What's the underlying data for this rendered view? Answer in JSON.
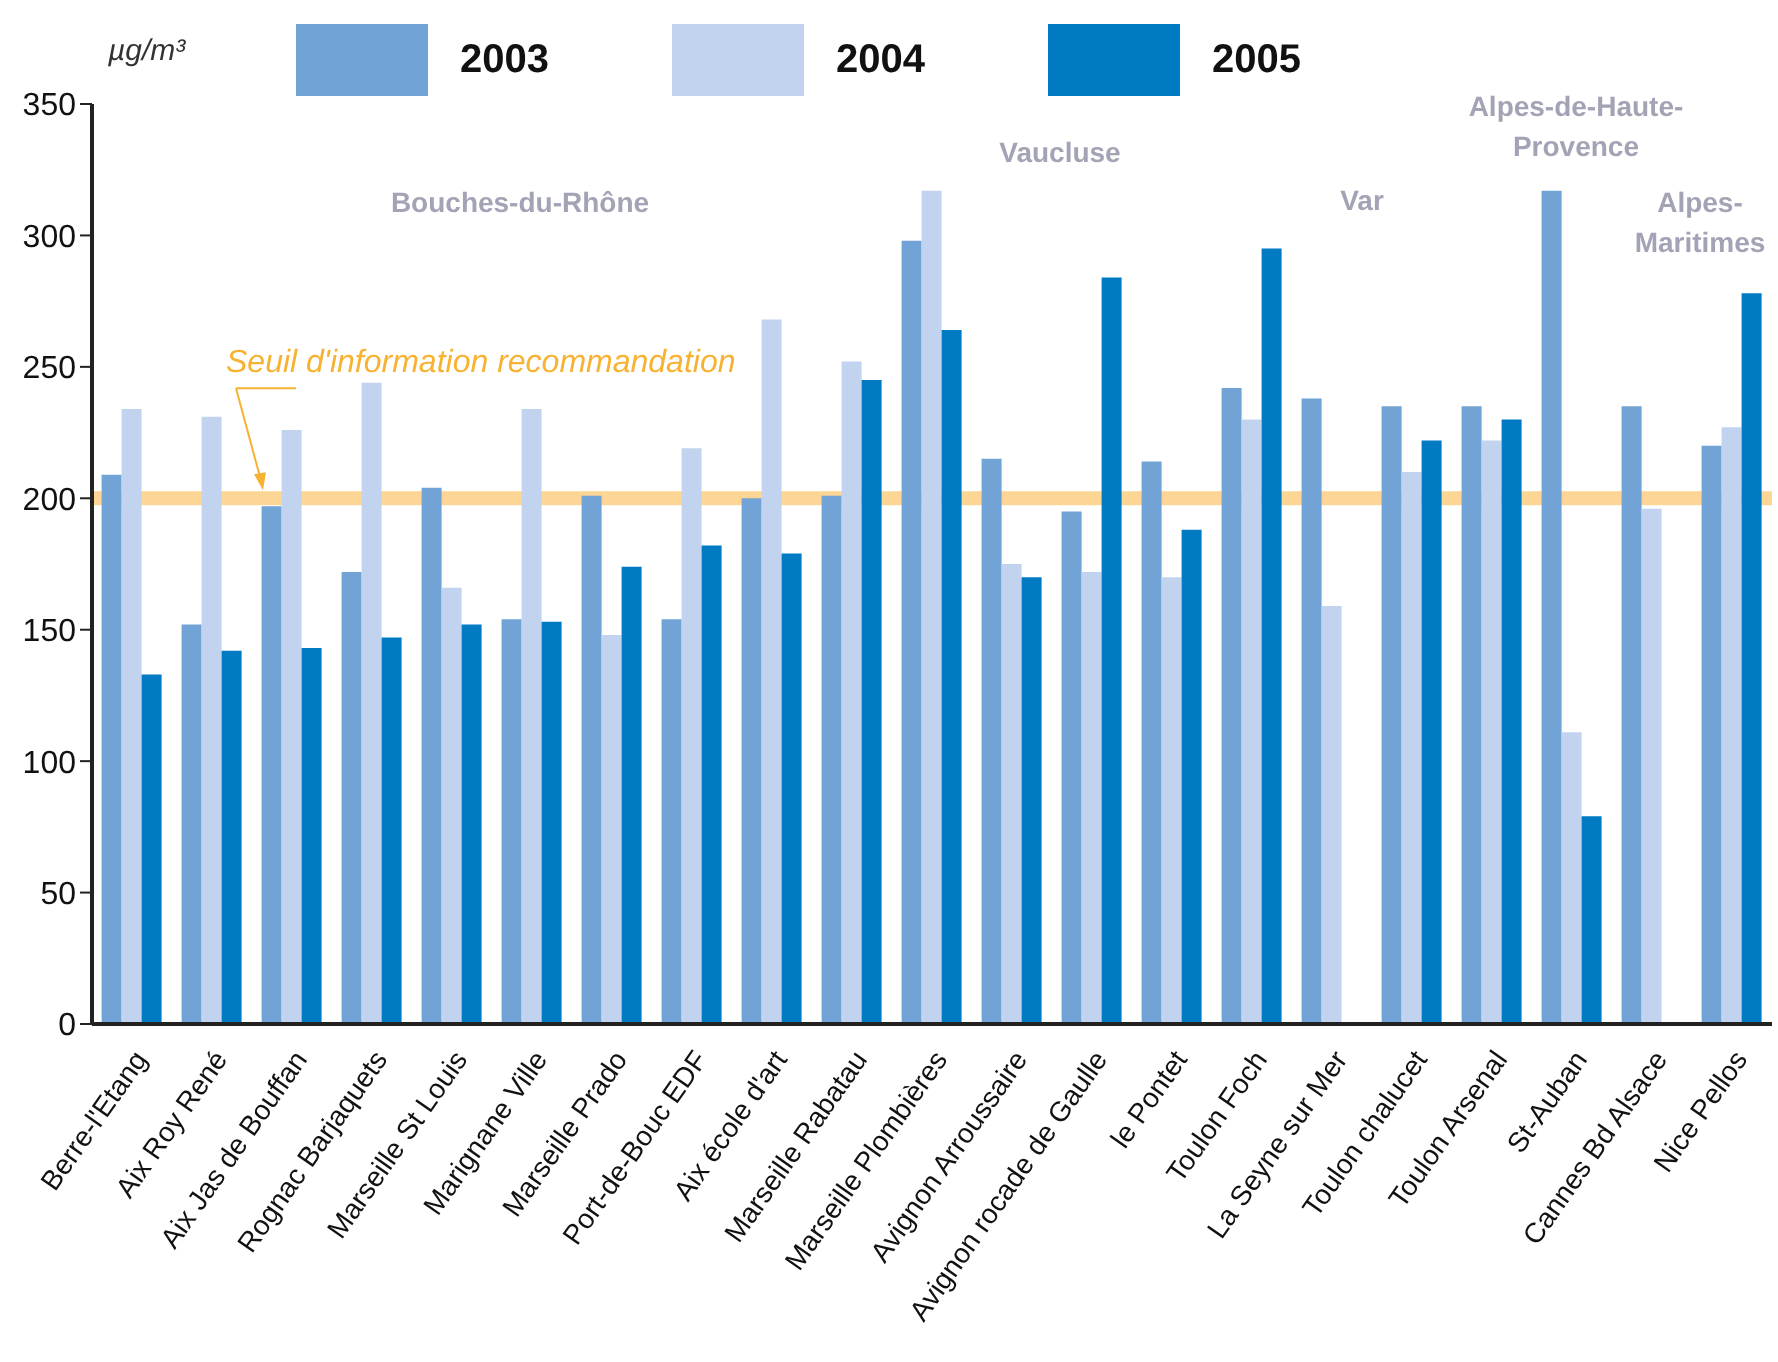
{
  "chart_data": {
    "type": "bar",
    "ylabel": "µg/m³",
    "categories": [
      "Berre-l'Etang",
      "Aix Roy René",
      "Aix Jas de Bouffan",
      "Rognac Barjaquets",
      "Marseille St Louis",
      "Marignane Ville",
      "Marseille Prado",
      "Port-de-Bouc EDF",
      "Aix école d'art",
      "Marseille Rabatau",
      "Marseille Plombières",
      "Avignon Arroussaire",
      "Avignon rocade de Gaulle",
      "le Pontet",
      "Toulon Foch",
      "La Seyne sur Mer",
      "Toulon chalucet",
      "Toulon Arsenal",
      "St-Auban",
      "Cannes Bd Alsace",
      "Nice Pellos"
    ],
    "series": [
      {
        "name": "2003",
        "color": "#71a3d6",
        "values": [
          209,
          152,
          197,
          172,
          204,
          154,
          201,
          154,
          200,
          201,
          298,
          215,
          195,
          214,
          242,
          238,
          235,
          235,
          317,
          235,
          220
        ]
      },
      {
        "name": "2004",
        "color": "#c1d3ee",
        "values": [
          234,
          231,
          226,
          244,
          166,
          234,
          148,
          219,
          268,
          252,
          317,
          175,
          172,
          170,
          230,
          159,
          210,
          222,
          111,
          196,
          227
        ]
      },
      {
        "name": "2005",
        "color": "#007ac3",
        "values": [
          133,
          142,
          143,
          147,
          152,
          153,
          174,
          182,
          179,
          245,
          264,
          170,
          284,
          188,
          295,
          null,
          222,
          230,
          79,
          null,
          278
        ]
      }
    ],
    "ylim": [
      0,
      350
    ],
    "yticks": [
      0,
      50,
      100,
      150,
      200,
      250,
      300,
      350
    ],
    "ref_lines": [
      {
        "axis": "y",
        "value": 200,
        "label": "Seuil d'information recommandation",
        "color": "#fdd595"
      }
    ],
    "annotations": [
      "Bouches-du-Rhône",
      "Vaucluse",
      "Var",
      "Alpes-de-Haute-\nProvence",
      "Alpes-\nMaritimes"
    ],
    "legend": "top",
    "grid": false
  }
}
